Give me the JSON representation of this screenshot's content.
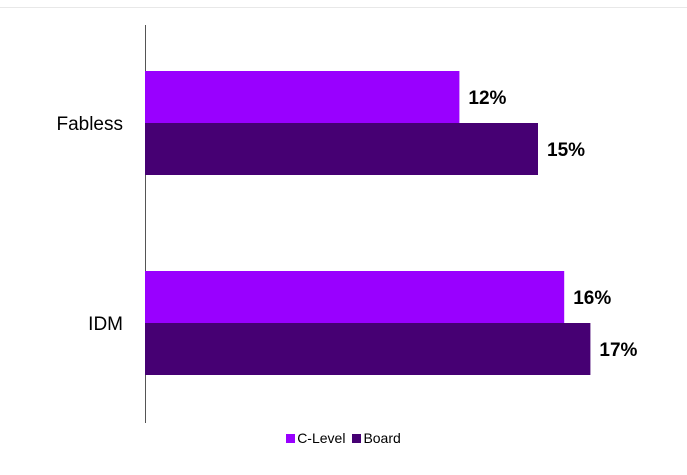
{
  "chart_data": {
    "type": "bar",
    "orientation": "horizontal",
    "categories": [
      "Fabless",
      "IDM"
    ],
    "series": [
      {
        "name": "C-Level",
        "values": [
          12,
          16
        ],
        "labels": [
          "12%",
          "16%"
        ],
        "color": "#9900ff"
      },
      {
        "name": "Board",
        "values": [
          15,
          17
        ],
        "labels": [
          "15%",
          "17%"
        ],
        "color": "#460073"
      }
    ],
    "xlim": [
      0,
      25
    ],
    "grid": false,
    "legend_position": "bottom"
  }
}
